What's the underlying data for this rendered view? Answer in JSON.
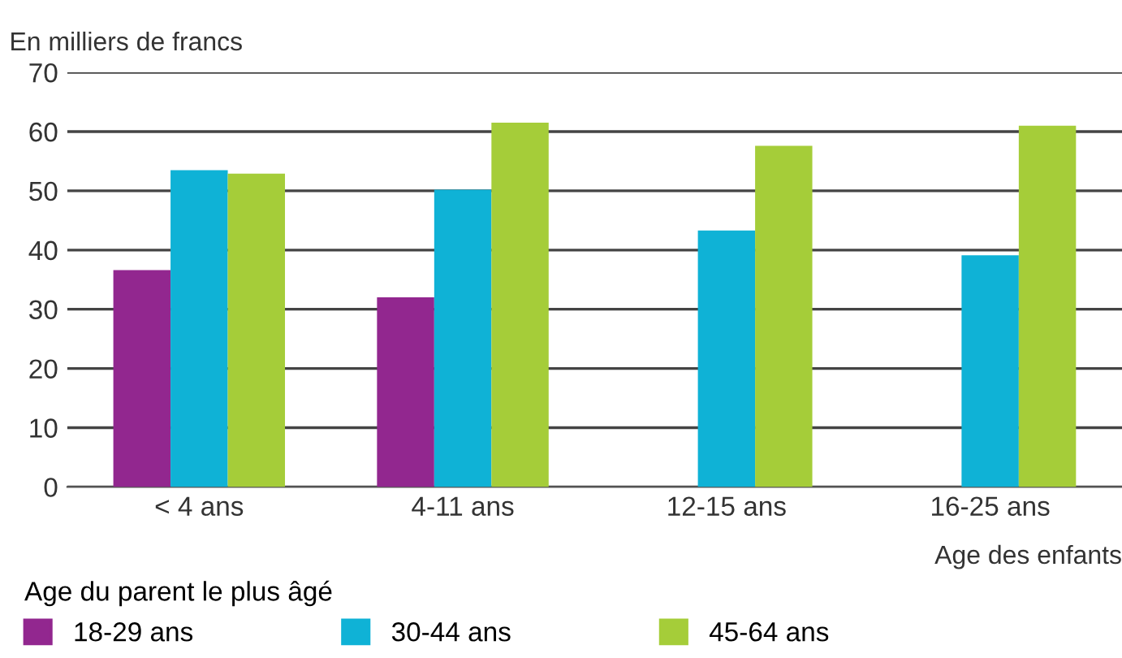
{
  "chart_data": {
    "type": "bar",
    "ylabel": "En milliers de francs",
    "xlabel": "Age des enfants",
    "legend_title": "Age du parent le plus âgé",
    "categories": [
      "< 4 ans",
      "4-11 ans",
      "12-15 ans",
      "16-25 ans"
    ],
    "series": [
      {
        "name": "18-29 ans",
        "color": "#92278f",
        "values": [
          36.6,
          32.0,
          null,
          null
        ]
      },
      {
        "name": "30-44 ans",
        "color": "#0fb2d6",
        "values": [
          53.5,
          50.2,
          43.3,
          39.1
        ]
      },
      {
        "name": "45-64 ans",
        "color": "#a5cd39",
        "values": [
          52.9,
          61.5,
          57.6,
          61.0
        ]
      }
    ],
    "ylim": [
      0,
      70
    ],
    "yticks": [
      0,
      10,
      20,
      30,
      40,
      50,
      60,
      70
    ],
    "grid": "y",
    "legend": "bottom left"
  }
}
